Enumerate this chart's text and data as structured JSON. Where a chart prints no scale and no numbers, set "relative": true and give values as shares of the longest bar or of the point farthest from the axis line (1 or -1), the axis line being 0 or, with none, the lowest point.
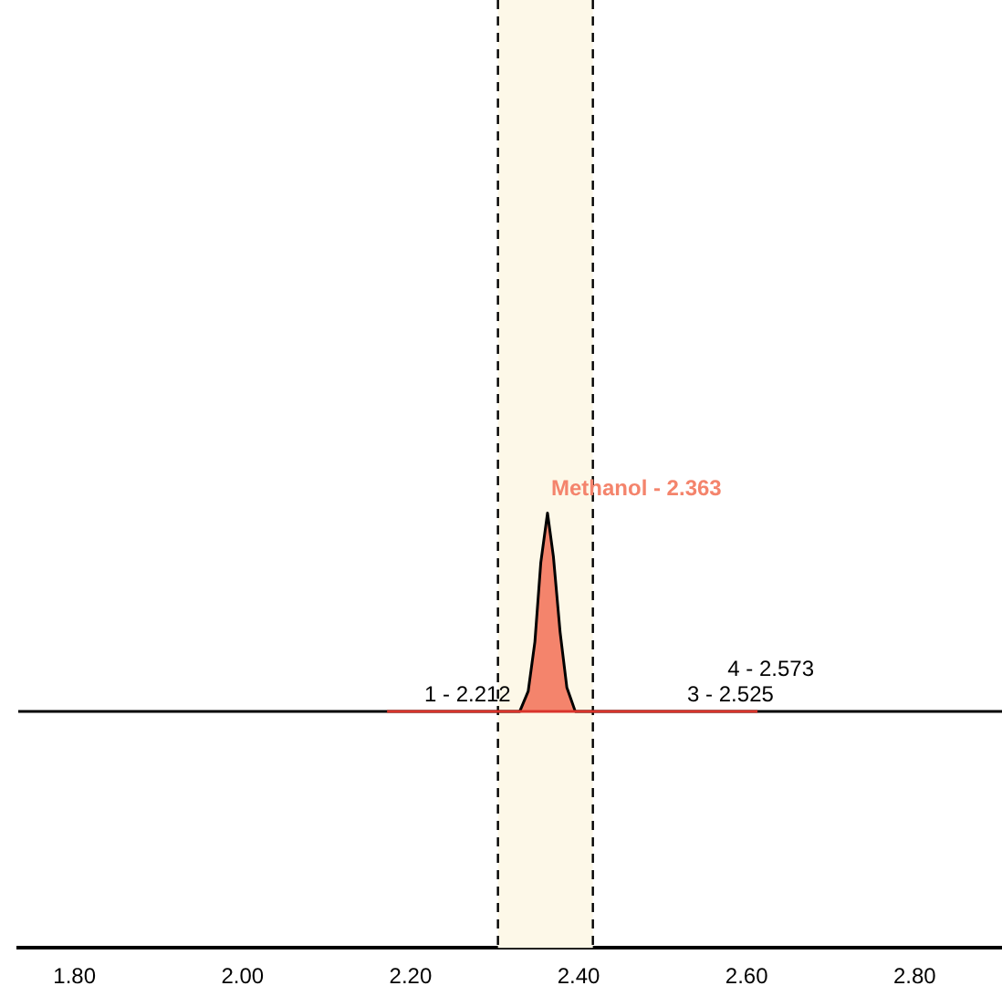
{
  "chart_data": {
    "type": "line",
    "relative": true,
    "xlim": [
      1.733,
      2.904
    ],
    "xticks": [
      {
        "value": 1.8,
        "label": "1.80"
      },
      {
        "value": 2.0,
        "label": "2.00"
      },
      {
        "value": 2.2,
        "label": "2.20"
      },
      {
        "value": 2.4,
        "label": "2.40"
      },
      {
        "value": 2.6,
        "label": "2.60"
      },
      {
        "value": 2.8,
        "label": "2.80"
      }
    ],
    "grid": false,
    "legend": false,
    "marker": "none",
    "tick_labels": "x",
    "series": [
      {
        "type": "line",
        "color": "#000000",
        "x": [
          1.733,
          2.33,
          2.34,
          2.348,
          2.355,
          2.363,
          2.37,
          2.378,
          2.386,
          2.396,
          2.904
        ],
        "values": [
          0.544,
          0.544,
          0.59,
          0.704,
          0.886,
          1,
          0.9,
          0.726,
          0.599,
          0.544,
          0.544
        ]
      },
      {
        "type": "area",
        "color": "#f4846c",
        "x": [
          2.33,
          2.34,
          2.348,
          2.355,
          2.363,
          2.37,
          2.378,
          2.386,
          2.396
        ],
        "values": [
          0.544,
          0.59,
          0.704,
          0.886,
          1,
          0.9,
          0.726,
          0.599,
          0.544
        ]
      },
      {
        "type": "line",
        "color": "#d9342b",
        "x": [
          2.172,
          2.613
        ],
        "values": [
          0.544,
          0.544
        ]
      }
    ],
    "bands": [
      {
        "axis": "x",
        "from": 2.304,
        "to": 2.417,
        "color": "#fdf8e8"
      }
    ],
    "ref_lines": [
      {
        "axis": "x",
        "value": 2.304,
        "line_style": "dashed",
        "color": "#000000"
      },
      {
        "axis": "x",
        "value": 2.417,
        "line_style": "dashed",
        "color": "#000000"
      }
    ],
    "annotations": [
      {
        "text": "Methanol - 2.363",
        "x": 2.363,
        "y": 1
      },
      {
        "text": "1 - 2.212",
        "x": 2.212,
        "y": 0.544
      },
      {
        "text": "3 - 2.525",
        "x": 2.525,
        "y": 0.544
      },
      {
        "text": "4 - 2.573",
        "x": 2.573,
        "y": 0.544
      }
    ]
  }
}
